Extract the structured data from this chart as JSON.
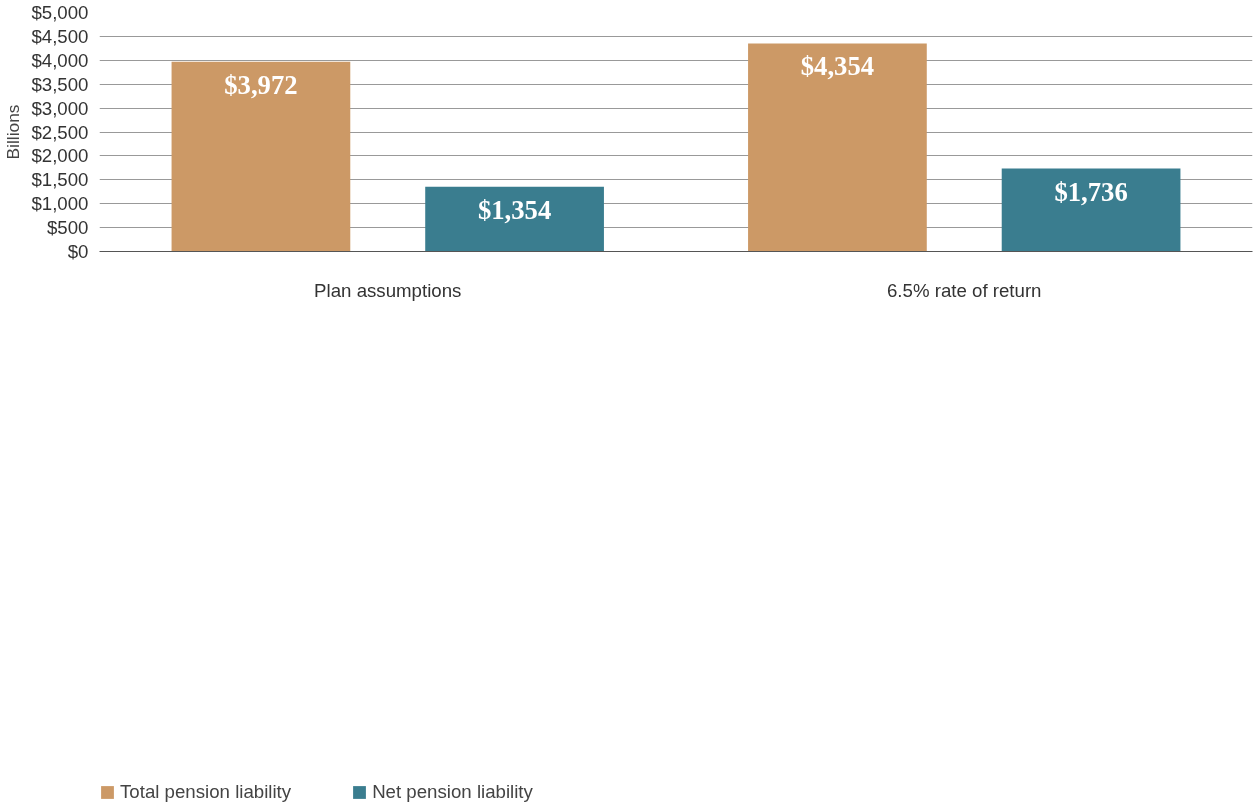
{
  "chart_data": {
    "type": "bar",
    "ylabel": "Billions",
    "categories": [
      "Plan assumptions",
      "6.5% rate of return"
    ],
    "series": [
      {
        "name": "Total pension liability",
        "color": "#cc9966",
        "values": [
          3972,
          4354
        ],
        "value_labels": [
          "$3,972",
          "$4,354"
        ]
      },
      {
        "name": "Net pension liability",
        "color": "#3a7d8f",
        "values": [
          1354,
          1736
        ],
        "value_labels": [
          "$1,354",
          "$1,736"
        ]
      }
    ],
    "ylim": [
      0,
      5000
    ],
    "yticks": [
      {
        "value": 0,
        "label": "$0"
      },
      {
        "value": 500,
        "label": "$500"
      },
      {
        "value": 1000,
        "label": "$1,000"
      },
      {
        "value": 1500,
        "label": "$1,500"
      },
      {
        "value": 2000,
        "label": "$2,000"
      },
      {
        "value": 2500,
        "label": "$2,500"
      },
      {
        "value": 3000,
        "label": "$3,000"
      },
      {
        "value": 3500,
        "label": "$3,500"
      },
      {
        "value": 4000,
        "label": "$4,000"
      },
      {
        "value": 4500,
        "label": "$4,500"
      },
      {
        "value": 5000,
        "label": "$5,000"
      }
    ],
    "grid": "y",
    "legend": "bottom left"
  }
}
